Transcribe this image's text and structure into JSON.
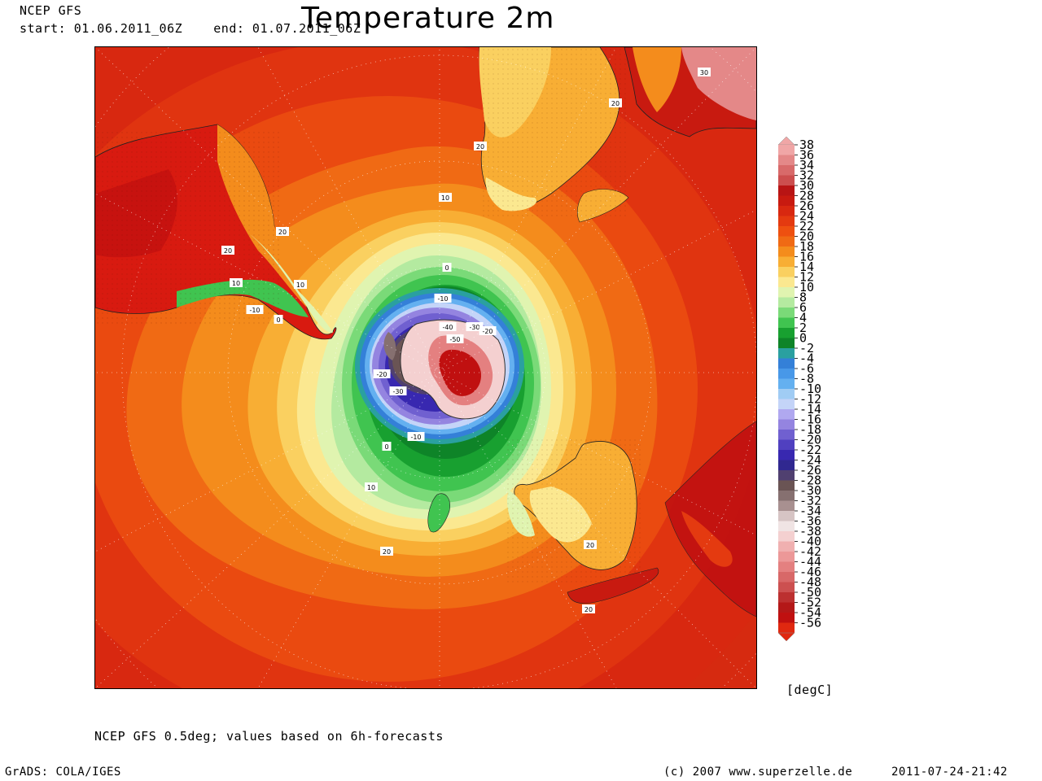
{
  "header": {
    "model": "NCEP GFS",
    "period": "start: 01.06.2011_06Z    end: 01.07.2011_06Z",
    "title": "Temperature 2m"
  },
  "map": {
    "projection": "south polar stereographic",
    "contour_labels": [
      "20",
      "20",
      "30",
      "20",
      "10",
      "20",
      "0",
      "10",
      "-10",
      "10",
      "-10",
      "0",
      "-40",
      "-30",
      "-20",
      "-50",
      "-20",
      "-30",
      "-10",
      "0",
      "10",
      "20",
      "20",
      "20"
    ]
  },
  "legend": {
    "unit": "[degC]",
    "labels": [
      "38",
      "36",
      "34",
      "32",
      "30",
      "28",
      "26",
      "24",
      "22",
      "20",
      "18",
      "16",
      "14",
      "12",
      "10",
      "8",
      "6",
      "4",
      "2",
      "0",
      "-2",
      "-4",
      "-6",
      "-8",
      "-10",
      "-12",
      "-14",
      "-16",
      "-18",
      "-20",
      "-22",
      "-24",
      "-26",
      "-28",
      "-30",
      "-32",
      "-34",
      "-36",
      "-38",
      "-40",
      "-42",
      "-44",
      "-46",
      "-48",
      "-50",
      "-52",
      "-54",
      "-56"
    ],
    "colors": [
      "#f0a6a6",
      "#e48888",
      "#d86a6a",
      "#cc4e4e",
      "#b81414",
      "#c81a10",
      "#d82810",
      "#e43a10",
      "#ee5010",
      "#f06a14",
      "#f48c1c",
      "#f8ae34",
      "#fad060",
      "#fbe890",
      "#e0f4b0",
      "#b4eaa0",
      "#7ada78",
      "#40c450",
      "#18a030",
      "#0e8428",
      "#2aa0a0",
      "#3480d8",
      "#4898e8",
      "#64b0f0",
      "#a0ccf4",
      "#c4d4f8",
      "#b0a8f0",
      "#9484e0",
      "#7060d0",
      "#5040c0",
      "#3828b0",
      "#302890",
      "#504070",
      "#6a5454",
      "#867070",
      "#a89090",
      "#d6c4c4",
      "#f0e4e4",
      "#f4d0d0",
      "#f0b0b0",
      "#ec9898",
      "#e48080",
      "#d86868",
      "#cc5050",
      "#bc3030",
      "#b41818",
      "#c01010",
      "#e02810"
    ]
  },
  "footer": {
    "note": "NCEP GFS 0.5deg; values based on 6h-forecasts",
    "grads": "GrADS: COLA/IGES",
    "copyright": "(c) 2007 www.superzelle.de",
    "timestamp": "2011-07-24-21:42"
  }
}
